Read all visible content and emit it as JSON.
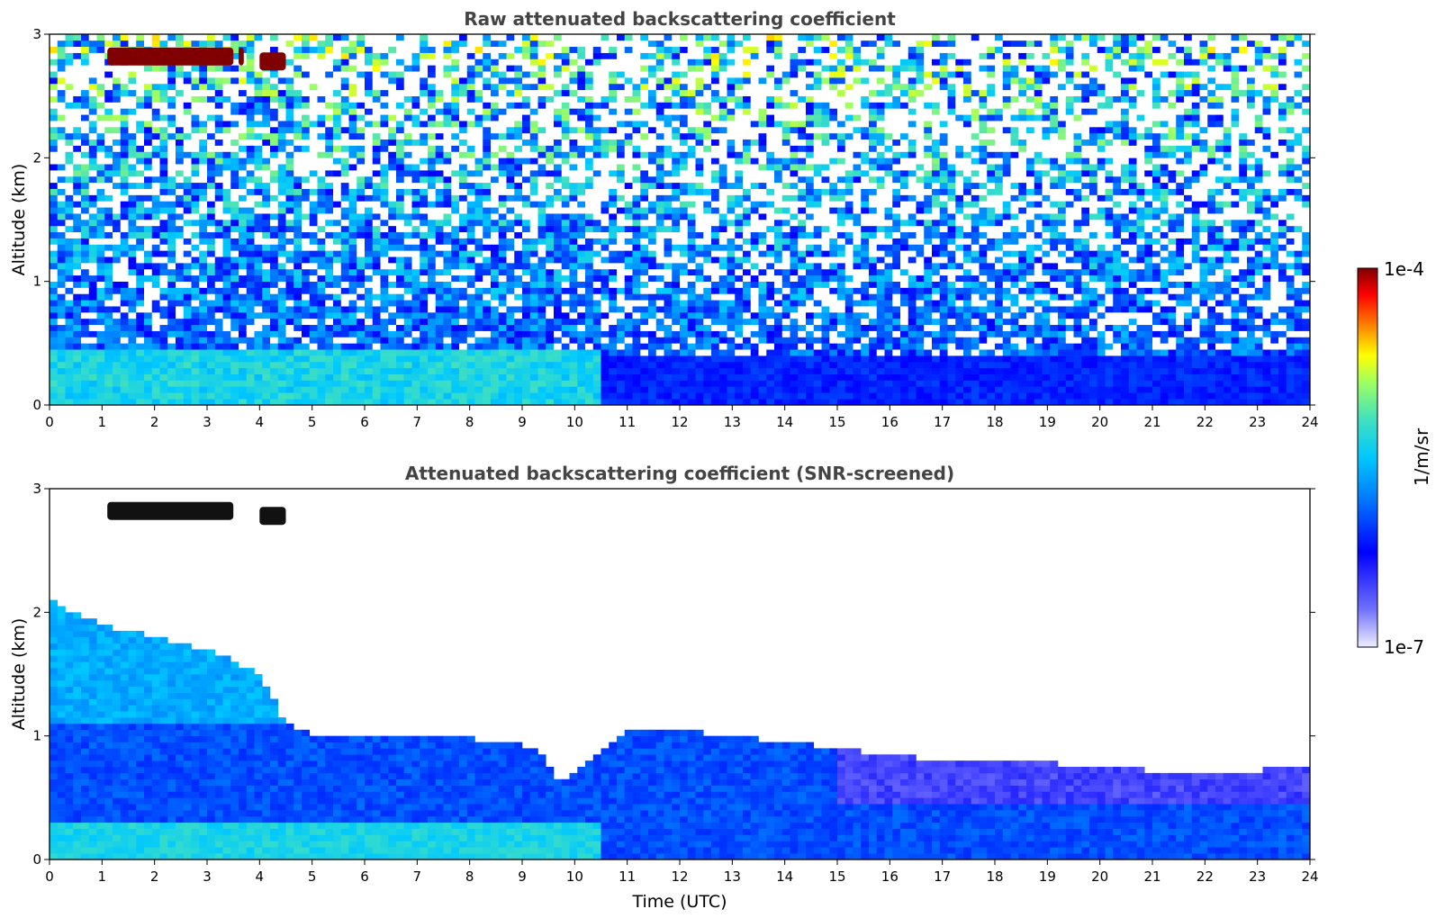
{
  "chart_data": [
    {
      "type": "heatmap",
      "title": "Raw attenuated backscattering coefficient",
      "xlabel": "",
      "ylabel": "Altitude (km)",
      "xlim": [
        0,
        24
      ],
      "ylim": [
        0,
        3
      ],
      "x_ticks": [
        "0",
        "1",
        "2",
        "3",
        "4",
        "5",
        "6",
        "7",
        "8",
        "9",
        "10",
        "11",
        "12",
        "13",
        "14",
        "15",
        "16",
        "17",
        "18",
        "19",
        "20",
        "21",
        "22",
        "23",
        "24"
      ],
      "y_ticks": [
        "0",
        "1",
        "2",
        "3"
      ],
      "screened": false,
      "features": [
        {
          "kind": "cloud",
          "start": 1.1,
          "end": 3.5,
          "alt": 2.82,
          "level": 1.0
        },
        {
          "kind": "cloud",
          "start": 3.6,
          "end": 3.7,
          "alt": 2.82,
          "level": 1.0
        },
        {
          "kind": "cloud",
          "start": 4.0,
          "end": 4.5,
          "alt": 2.78,
          "level": 1.0
        },
        {
          "kind": "surface_layer",
          "start": 0,
          "end": 10.5,
          "top": 0.45,
          "level": 0.55
        },
        {
          "kind": "boundary_layer",
          "start": 10.5,
          "end": 24,
          "top": 0.4,
          "level": 0.35
        }
      ]
    },
    {
      "type": "heatmap",
      "title": "Attenuated backscattering coefficient (SNR-screened)",
      "xlabel": "Time (UTC)",
      "ylabel": "Altitude (km)",
      "xlim": [
        0,
        24
      ],
      "ylim": [
        0,
        3
      ],
      "x_ticks": [
        "0",
        "1",
        "2",
        "3",
        "4",
        "5",
        "6",
        "7",
        "8",
        "9",
        "10",
        "11",
        "12",
        "13",
        "14",
        "15",
        "16",
        "17",
        "18",
        "19",
        "20",
        "21",
        "22",
        "23",
        "24"
      ],
      "y_ticks": [
        "0",
        "1",
        "2",
        "3"
      ],
      "screened": true,
      "layer_top_km": [
        [
          0,
          2.1
        ],
        [
          0.5,
          2.0
        ],
        [
          1.0,
          1.9
        ],
        [
          2.0,
          1.8
        ],
        [
          3.0,
          1.7
        ],
        [
          4.0,
          1.5
        ],
        [
          4.5,
          1.1
        ],
        [
          5.0,
          1.0
        ],
        [
          6.0,
          1.0
        ],
        [
          7.0,
          1.0
        ],
        [
          8.0,
          0.98
        ],
        [
          9.0,
          0.93
        ],
        [
          9.3,
          0.9
        ],
        [
          9.5,
          0.75
        ],
        [
          9.7,
          0.63
        ],
        [
          10.0,
          0.7
        ],
        [
          10.5,
          0.9
        ],
        [
          11.0,
          1.05
        ],
        [
          12.0,
          1.05
        ],
        [
          13.0,
          1.0
        ],
        [
          14.0,
          0.95
        ],
        [
          15.0,
          0.9
        ],
        [
          16.0,
          0.85
        ],
        [
          17.0,
          0.8
        ],
        [
          18.0,
          0.8
        ],
        [
          19.0,
          0.78
        ],
        [
          20.0,
          0.75
        ],
        [
          21.0,
          0.72
        ],
        [
          22.0,
          0.7
        ],
        [
          23.0,
          0.72
        ],
        [
          23.9,
          0.75
        ]
      ],
      "features": [
        {
          "kind": "cloud",
          "start": 1.1,
          "end": 3.5,
          "alt": 2.82,
          "level": 0.0
        },
        {
          "kind": "cloud",
          "start": 4.0,
          "end": 4.5,
          "alt": 2.78,
          "level": 0.0
        }
      ]
    }
  ],
  "colorbar": {
    "label": "1/m/sr",
    "max_label": "1e-4",
    "min_label": "1e-7",
    "colormap": [
      "#e6e6ff",
      "#0000ff",
      "#00a0ff",
      "#00e5e5",
      "#80ff80",
      "#ffff00",
      "#ff8000",
      "#ff0000",
      "#800000"
    ]
  }
}
